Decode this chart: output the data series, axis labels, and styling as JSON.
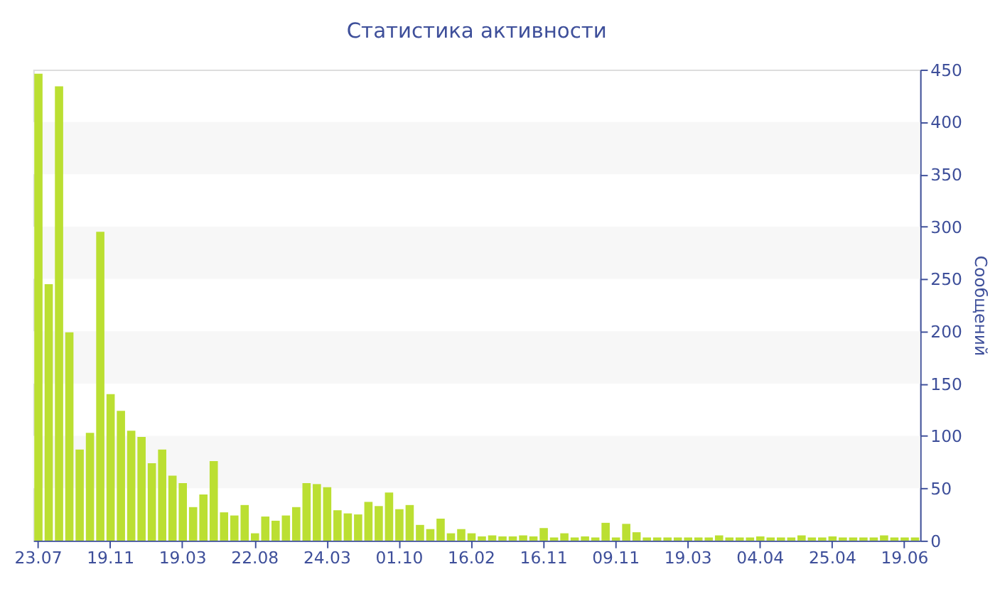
{
  "chart_data": {
    "type": "bar",
    "title": "Статистика активности",
    "ylabel": "Сообщений",
    "categories": [
      "23.07",
      null,
      null,
      null,
      null,
      null,
      null,
      "19.11",
      null,
      null,
      null,
      null,
      null,
      null,
      "19.03",
      null,
      null,
      null,
      null,
      null,
      null,
      "22.08",
      null,
      null,
      null,
      null,
      null,
      null,
      "24.03",
      null,
      null,
      null,
      null,
      null,
      null,
      "01.10",
      null,
      null,
      null,
      null,
      null,
      null,
      "16.02",
      null,
      null,
      null,
      null,
      null,
      null,
      "16.11",
      null,
      null,
      null,
      null,
      null,
      null,
      "09.11",
      null,
      null,
      null,
      null,
      null,
      null,
      "19.03",
      null,
      null,
      null,
      null,
      null,
      null,
      "04.04",
      null,
      null,
      null,
      null,
      null,
      null,
      "25.04",
      null,
      null,
      null,
      null,
      null,
      null,
      "19.06",
      null
    ],
    "values": [
      446,
      245,
      434,
      199,
      87,
      103,
      295,
      140,
      124,
      105,
      99,
      74,
      87,
      62,
      55,
      32,
      44,
      76,
      27,
      24,
      34,
      7,
      23,
      19,
      24,
      32,
      55,
      54,
      51,
      29,
      26,
      25,
      37,
      33,
      46,
      30,
      34,
      15,
      11,
      21,
      7,
      11,
      7,
      4,
      5,
      4,
      4,
      5,
      4,
      12,
      3,
      7,
      3,
      4,
      3,
      17,
      3,
      16,
      8,
      3,
      3,
      3,
      3,
      3,
      3,
      3,
      5,
      3,
      3,
      3,
      4,
      3,
      3,
      3,
      5,
      3,
      3,
      4,
      3,
      3,
      3,
      3,
      5,
      3,
      3,
      3
    ],
    "color": "#bbdf32",
    "ylim": [
      0,
      450
    ],
    "yticks": [
      0,
      50,
      100,
      150,
      200,
      250,
      300,
      350,
      400,
      450
    ],
    "bands": [
      {
        "axis": "y",
        "from": 50,
        "to": 100,
        "color": "#f7f7f7"
      },
      {
        "axis": "y",
        "from": 150,
        "to": 200,
        "color": "#f7f7f7"
      },
      {
        "axis": "y",
        "from": 250,
        "to": 300,
        "color": "#f7f7f7"
      },
      {
        "axis": "y",
        "from": 350,
        "to": 400,
        "color": "#f7f7f7"
      }
    ],
    "grid": false
  }
}
